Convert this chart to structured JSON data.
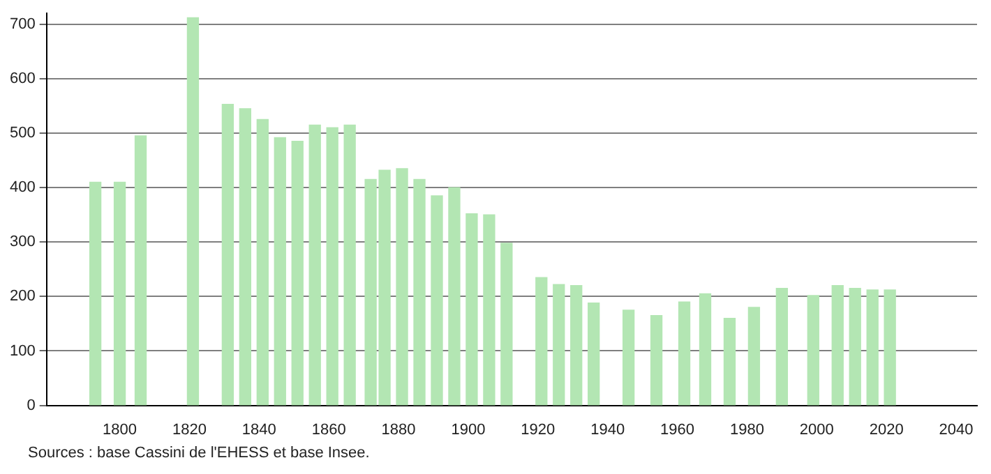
{
  "chart_data": {
    "type": "bar",
    "color": "#b3e6b3",
    "x": [
      1793,
      1800,
      1806,
      1821,
      1831,
      1836,
      1841,
      1846,
      1851,
      1856,
      1861,
      1866,
      1872,
      1876,
      1881,
      1886,
      1891,
      1896,
      1901,
      1906,
      1911,
      1921,
      1926,
      1931,
      1936,
      1946,
      1954,
      1962,
      1968,
      1975,
      1982,
      1990,
      1999,
      2006,
      2011,
      2016,
      2021
    ],
    "values": [
      410,
      410,
      495,
      712,
      553,
      545,
      525,
      492,
      485,
      515,
      510,
      515,
      415,
      432,
      435,
      415,
      385,
      400,
      352,
      350,
      298,
      235,
      222,
      220,
      188,
      175,
      165,
      190,
      205,
      160,
      180,
      215,
      202,
      220,
      215,
      212,
      212
    ],
    "xlim": [
      1779,
      2046
    ],
    "xticks": [
      1800,
      1820,
      1840,
      1860,
      1880,
      1900,
      1920,
      1940,
      1960,
      1980,
      2000,
      2020,
      2040
    ],
    "ylim": [
      0,
      720
    ],
    "yticks": [
      0,
      100,
      200,
      300,
      400,
      500,
      600,
      700
    ],
    "grid": "y",
    "legend": false,
    "annotations": [
      "Sources : base Cassini de l'EHESS et base Insee."
    ]
  }
}
